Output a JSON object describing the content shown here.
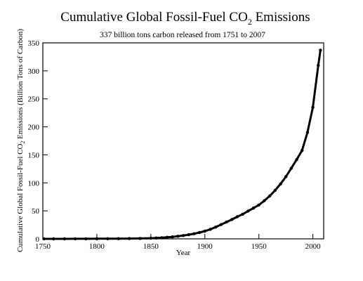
{
  "chart_data": {
    "type": "line",
    "title": {
      "prefix": "Cumulative Global Fossil-Fuel CO",
      "subscript": "2",
      "suffix": " Emissions"
    },
    "subtitle": "337 billion tons carbon released from 1751 to 2007",
    "xlabel": "Year",
    "ylabel": {
      "prefix": "Cumulative Global Fossil-Fuel CO",
      "subscript": "2",
      "suffix": " Emissions (Billion Tons of Carbon)"
    },
    "xlim": [
      1750,
      2010
    ],
    "ylim": [
      0,
      350
    ],
    "xticks": [
      1750,
      1800,
      1850,
      1900,
      1950,
      2000
    ],
    "yticks": [
      0,
      50,
      100,
      150,
      200,
      250,
      300,
      350
    ],
    "grid": false,
    "legend": "none",
    "series": [
      {
        "color": "#000000",
        "x": [
          1751,
          1760,
          1770,
          1780,
          1790,
          1800,
          1810,
          1820,
          1830,
          1840,
          1850,
          1855,
          1860,
          1865,
          1870,
          1875,
          1880,
          1885,
          1890,
          1895,
          1900,
          1905,
          1910,
          1915,
          1920,
          1925,
          1930,
          1935,
          1940,
          1945,
          1950,
          1955,
          1960,
          1965,
          1970,
          1975,
          1980,
          1985,
          1990,
          1995,
          2000,
          2005,
          2007
        ],
        "y": [
          0.003,
          0.03,
          0.06,
          0.1,
          0.15,
          0.2,
          0.28,
          0.38,
          0.55,
          0.8,
          1.1,
          1.5,
          2.0,
          2.7,
          3.5,
          4.6,
          5.9,
          7.4,
          9.2,
          11.3,
          13.8,
          17.0,
          21.0,
          25.5,
          30.0,
          34.5,
          39.5,
          44.0,
          49.5,
          55.0,
          60.5,
          68.0,
          76.5,
          86.5,
          98.0,
          111.0,
          126.0,
          141.5,
          158.0,
          190.0,
          235.0,
          310.0,
          337.0
        ]
      }
    ]
  }
}
